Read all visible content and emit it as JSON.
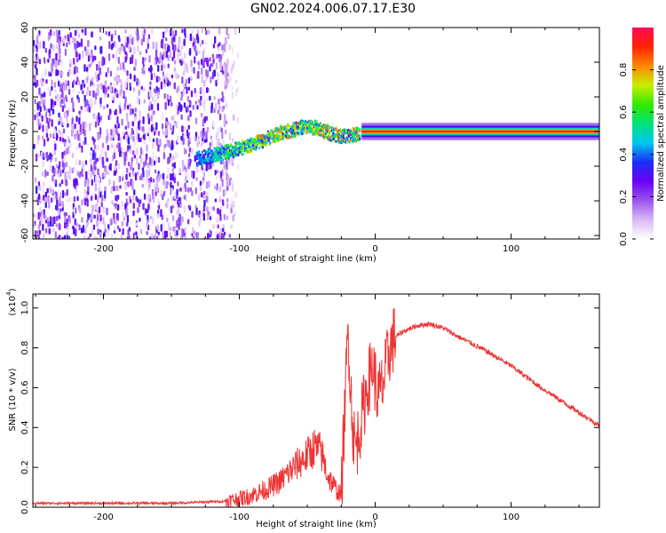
{
  "title": "GN02.2024.006.07.17.E30",
  "chart_data": [
    {
      "type": "heatmap",
      "xlabel": "Height of straight line (km)",
      "ylabel": "Frequency (Hz)",
      "xlim": [
        -252,
        165
      ],
      "ylim": [
        -62,
        60
      ],
      "xticks": [
        -200,
        -100,
        0,
        100
      ],
      "yticks": [
        -60,
        -40,
        -20,
        0,
        20,
        40,
        60
      ],
      "colorbar": {
        "label": "Normalized spectral amplitude",
        "range": [
          0,
          1
        ],
        "ticks": [
          "0.0",
          "0.2",
          "0.4",
          "0.6",
          "0.8"
        ],
        "colormap": [
          "#ffffff",
          "#d8b8f6",
          "#9a55ee",
          "#6a00f6",
          "#1a2ef6",
          "#00c8f0",
          "#00e27a",
          "#32ea00",
          "#c8ee00",
          "#ff8800",
          "#ff2200",
          "#ff0a5a"
        ]
      },
      "features": {
        "noise_extent_x": [
          -252,
          -100
        ],
        "signal_ridge": [
          [
            -132,
            -15
          ],
          [
            -115,
            -12
          ],
          [
            -100,
            -9
          ],
          [
            -85,
            -5
          ],
          [
            -70,
            0
          ],
          [
            -55,
            3
          ],
          [
            -45,
            3
          ],
          [
            -35,
            0
          ],
          [
            -25,
            -2
          ],
          [
            -15,
            -1
          ],
          [
            0,
            0
          ],
          [
            165,
            0
          ]
        ],
        "tone_frequency": 0
      }
    },
    {
      "type": "line",
      "xlabel": "Height of straight line (km)",
      "ylabel": "SNR (10 * v/v)",
      "scale_label": "(x10",
      "scale_exponent": "4",
      "xlim": [
        -252,
        165
      ],
      "ylim": [
        0,
        1.07
      ],
      "xticks": [
        -200,
        -100,
        0,
        100
      ],
      "yticks": [
        "0.0",
        "0.2",
        "0.4",
        "0.6",
        "0.8",
        "1.0"
      ],
      "color": "#ee3333",
      "x": [
        -252,
        -200,
        -150,
        -110,
        -95,
        -80,
        -70,
        -60,
        -50,
        -45,
        -40,
        -35,
        -30,
        -25,
        -22,
        -20,
        -18,
        -16,
        -14,
        -10,
        -6,
        -2,
        2,
        6,
        10,
        14,
        20,
        30,
        40,
        50,
        60,
        80,
        100,
        120,
        140,
        165
      ],
      "values": [
        0.02,
        0.02,
        0.02,
        0.03,
        0.05,
        0.09,
        0.13,
        0.2,
        0.26,
        0.3,
        0.28,
        0.16,
        0.1,
        0.06,
        0.55,
        0.9,
        0.6,
        0.35,
        0.3,
        0.45,
        0.6,
        0.72,
        0.55,
        0.62,
        0.78,
        0.85,
        0.88,
        0.91,
        0.92,
        0.9,
        0.86,
        0.79,
        0.71,
        0.61,
        0.52,
        0.41
      ]
    }
  ]
}
